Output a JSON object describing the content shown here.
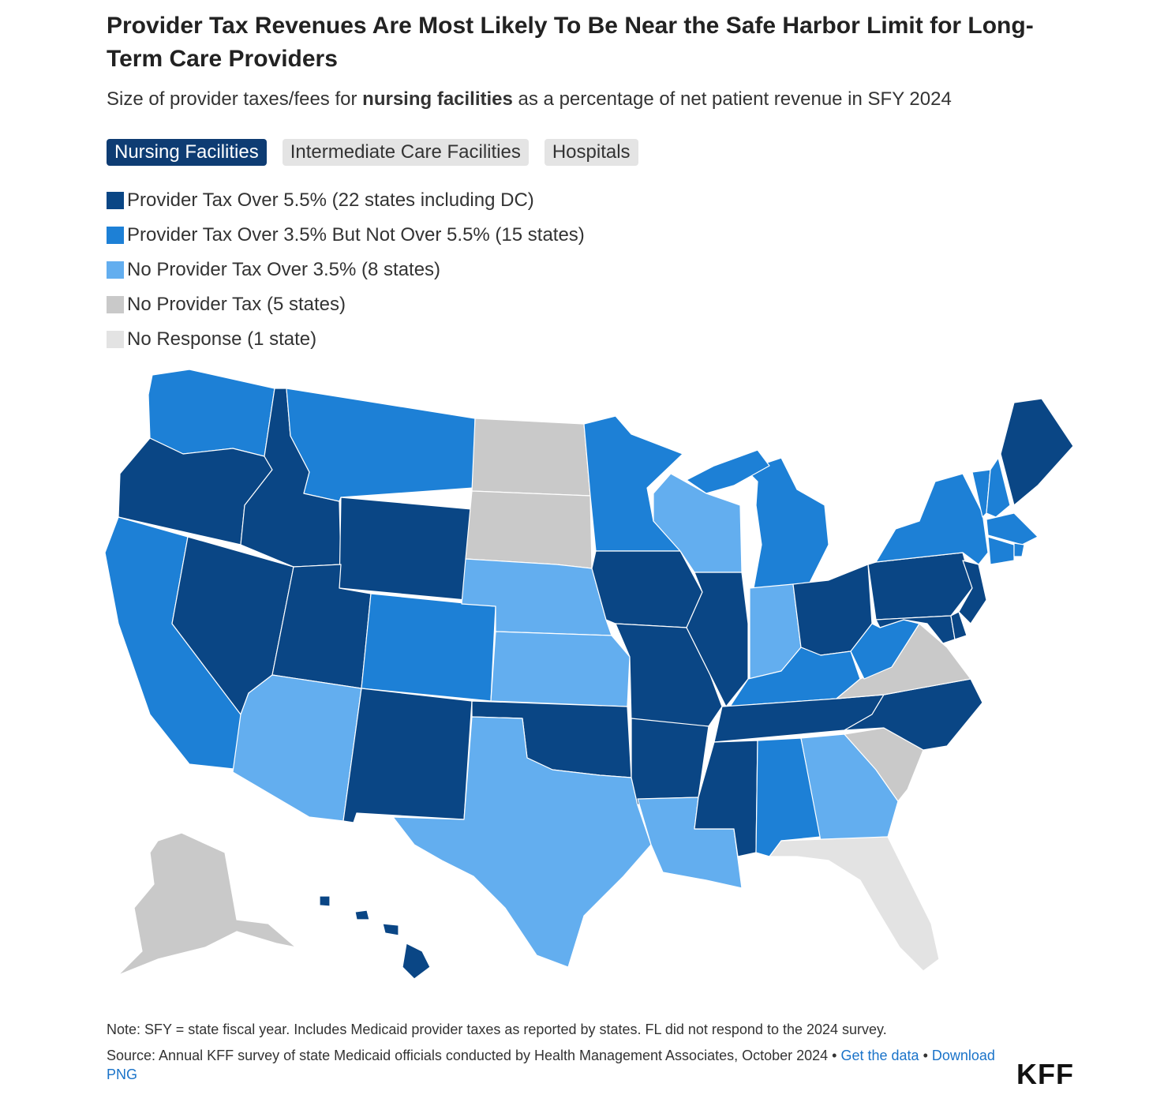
{
  "header": {
    "title": "Provider Tax Revenues Are Most Likely To Be Near the Safe Harbor Limit for Long-Term Care Providers",
    "subtitle_pre": "Size of provider taxes/fees for ",
    "subtitle_bold": "nursing facilities",
    "subtitle_post": " as a percentage of net patient revenue in SFY 2024"
  },
  "tabs": [
    {
      "label": "Nursing Facilities",
      "active": true
    },
    {
      "label": "Intermediate Care Facilities",
      "active": false
    },
    {
      "label": "Hospitals",
      "active": false
    }
  ],
  "legend": [
    {
      "label": "Provider Tax Over 5.5% (22 states including DC)",
      "color": "#0a4685"
    },
    {
      "label": "Provider Tax Over 3.5% But Not Over 5.5% (15 states)",
      "color": "#1d80d6"
    },
    {
      "label": "No Provider Tax Over 3.5% (8 states)",
      "color": "#63aeef"
    },
    {
      "label": "No Provider Tax (5 states)",
      "color": "#c9c9c9"
    },
    {
      "label": "No Response (1 state)",
      "color": "#e3e3e3"
    }
  ],
  "footer": {
    "note": "Note: SFY = state fiscal year. Includes Medicaid provider taxes as reported by states. FL did not respond to the 2024 survey.",
    "source": "Source: Annual KFF survey of state Medicaid officials conducted by Health Management Associates, October 2024 • ",
    "get_data": "Get the data",
    "separator": " • ",
    "download": "Download PNG",
    "logo": "KFF"
  }
}
